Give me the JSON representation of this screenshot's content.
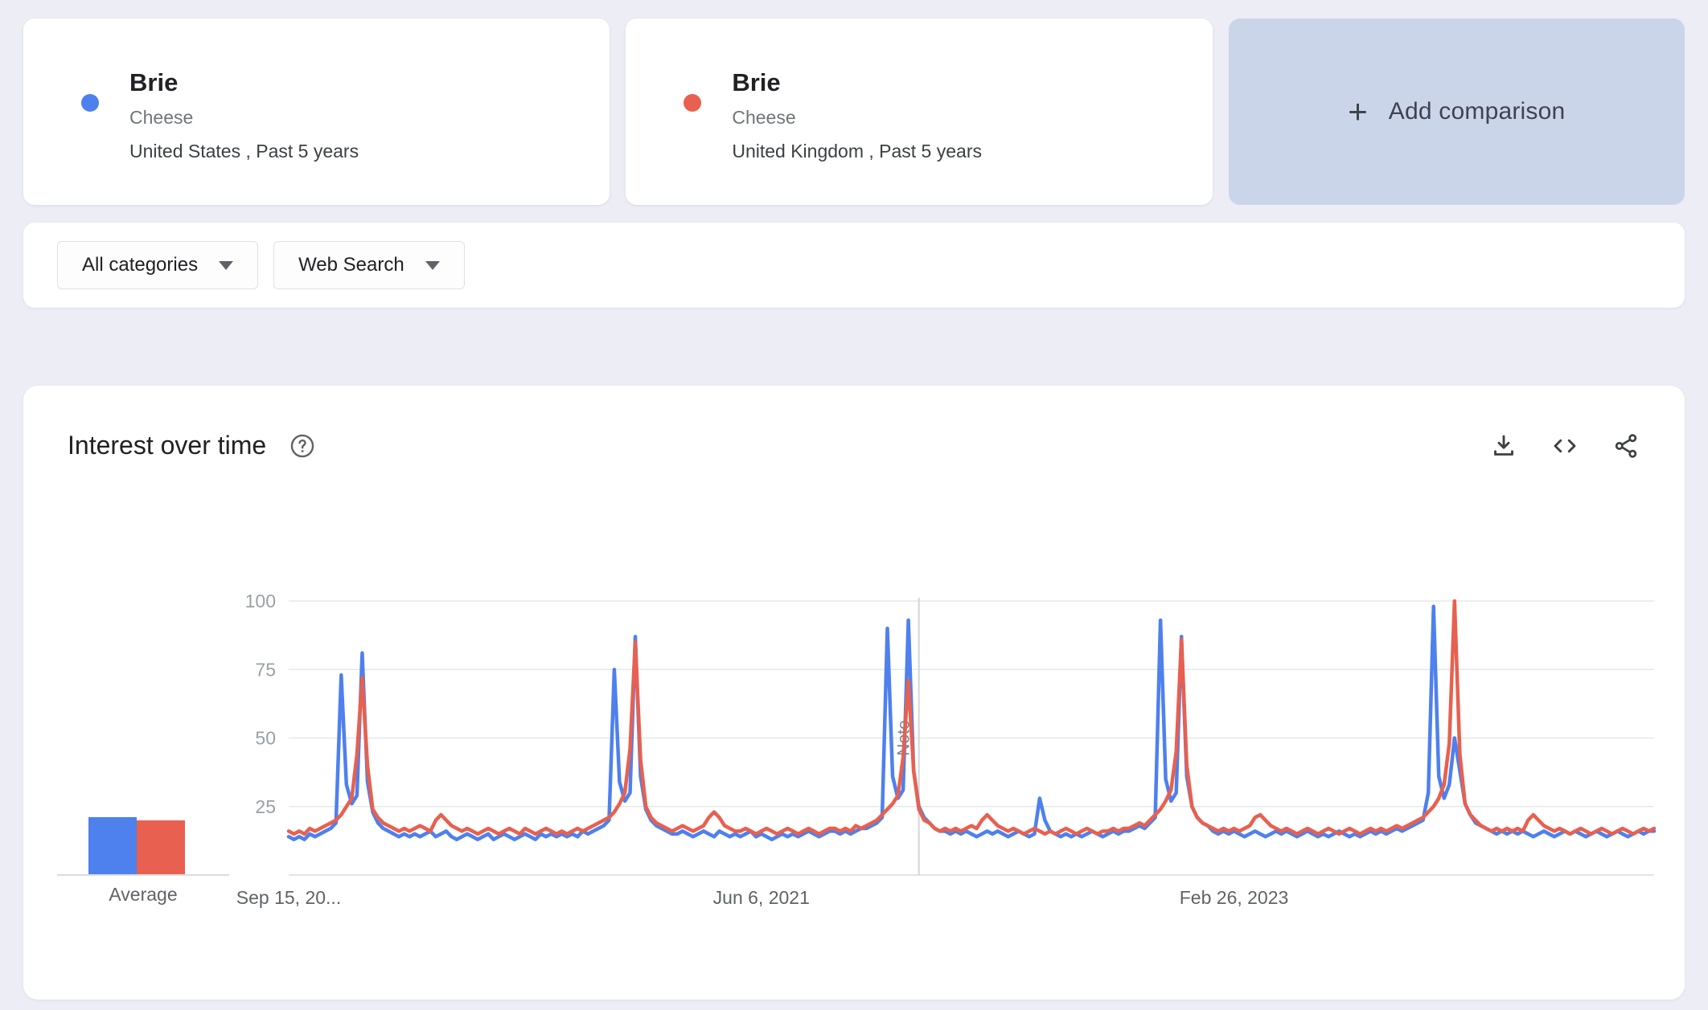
{
  "icons": {
    "plus": "+"
  },
  "comparison": {
    "items": [
      {
        "term": "Brie",
        "subtitle": "Cheese",
        "scope": "United States , Past 5 years",
        "color": "#4e80ee"
      },
      {
        "term": "Brie",
        "subtitle": "Cheese",
        "scope": "United Kingdom , Past 5 years",
        "color": "#e8604f"
      }
    ],
    "add_label": "Add comparison"
  },
  "filters": {
    "category_label": "All categories",
    "search_type_label": "Web Search"
  },
  "chart_card": {
    "title": "Interest over time"
  },
  "chart_data": {
    "type": "line",
    "title": "Interest over time",
    "x_axis": {
      "start": "Sep 15, 2019",
      "interval": "weekly",
      "tick_labels": [
        "Sep 15, 20...",
        "Jun 6, 2021",
        "Feb 26, 2023"
      ],
      "tick_positions_week": [
        0,
        90,
        180
      ]
    },
    "y_axis": {
      "ticks": [
        25,
        50,
        75,
        100
      ],
      "range": [
        0,
        100
      ],
      "grid": true
    },
    "note_marker": {
      "label": "Note",
      "week": 120
    },
    "series": [
      {
        "name": "Brie (United States)",
        "color": "#4e80ee",
        "values": [
          14,
          13,
          14,
          13,
          15,
          14,
          15,
          16,
          17,
          19,
          73,
          33,
          26,
          29,
          81,
          34,
          23,
          19,
          17,
          16,
          15,
          14,
          15,
          14,
          15,
          14,
          15,
          16,
          14,
          15,
          16,
          14,
          13,
          14,
          15,
          14,
          13,
          14,
          15,
          13,
          14,
          15,
          14,
          13,
          14,
          15,
          14,
          13,
          15,
          14,
          15,
          14,
          15,
          14,
          15,
          14,
          16,
          15,
          16,
          17,
          18,
          20,
          75,
          34,
          27,
          30,
          87,
          36,
          24,
          20,
          18,
          17,
          16,
          15,
          15,
          16,
          15,
          14,
          15,
          16,
          15,
          14,
          16,
          15,
          14,
          15,
          14,
          15,
          16,
          14,
          15,
          14,
          13,
          14,
          15,
          14,
          15,
          14,
          15,
          16,
          15,
          14,
          15,
          16,
          16,
          15,
          16,
          15,
          16,
          17,
          17,
          18,
          19,
          21,
          90,
          36,
          28,
          31,
          93,
          38,
          25,
          21,
          19,
          17,
          16,
          16,
          15,
          16,
          15,
          16,
          15,
          14,
          15,
          16,
          15,
          16,
          15,
          14,
          15,
          16,
          15,
          14,
          15,
          28,
          20,
          16,
          15,
          14,
          15,
          14,
          15,
          14,
          15,
          16,
          15,
          14,
          15,
          16,
          15,
          16,
          16,
          17,
          18,
          17,
          19,
          21,
          93,
          35,
          27,
          30,
          87,
          36,
          25,
          21,
          19,
          18,
          16,
          15,
          16,
          15,
          16,
          15,
          14,
          15,
          16,
          15,
          14,
          15,
          16,
          15,
          16,
          15,
          14,
          15,
          16,
          15,
          14,
          15,
          14,
          15,
          16,
          15,
          14,
          15,
          14,
          15,
          16,
          15,
          16,
          15,
          16,
          17,
          16,
          17,
          18,
          19,
          20,
          30,
          98,
          36,
          28,
          33,
          50,
          38,
          26,
          22,
          19,
          18,
          17,
          16,
          15,
          16,
          15,
          16,
          15,
          16,
          15,
          14,
          15,
          16,
          15,
          14,
          15,
          16,
          15,
          16,
          15,
          14,
          15,
          16,
          15,
          14,
          15,
          16,
          15,
          14,
          15,
          16,
          15,
          16,
          16
        ]
      },
      {
        "name": "Brie (United Kingdom)",
        "color": "#e8604f",
        "values": [
          16,
          15,
          16,
          15,
          17,
          16,
          17,
          18,
          19,
          20,
          22,
          25,
          28,
          44,
          72,
          40,
          24,
          21,
          19,
          18,
          17,
          16,
          17,
          16,
          17,
          18,
          17,
          16,
          20,
          22,
          20,
          18,
          17,
          16,
          17,
          16,
          15,
          16,
          17,
          16,
          15,
          16,
          17,
          16,
          15,
          17,
          16,
          15,
          16,
          17,
          16,
          15,
          16,
          15,
          16,
          17,
          16,
          17,
          18,
          19,
          20,
          21,
          23,
          26,
          30,
          46,
          85,
          42,
          25,
          21,
          19,
          18,
          17,
          16,
          17,
          18,
          17,
          16,
          17,
          18,
          21,
          23,
          21,
          18,
          17,
          16,
          16,
          17,
          16,
          15,
          16,
          17,
          16,
          15,
          16,
          17,
          16,
          15,
          16,
          17,
          16,
          15,
          16,
          17,
          17,
          16,
          17,
          16,
          18,
          17,
          18,
          19,
          20,
          22,
          24,
          26,
          29,
          43,
          71,
          38,
          24,
          20,
          19,
          17,
          16,
          17,
          16,
          17,
          16,
          17,
          18,
          17,
          20,
          22,
          20,
          18,
          17,
          16,
          17,
          16,
          15,
          16,
          17,
          16,
          15,
          16,
          15,
          16,
          17,
          16,
          15,
          16,
          17,
          16,
          15,
          16,
          16,
          17,
          16,
          17,
          17,
          18,
          19,
          18,
          20,
          22,
          24,
          27,
          31,
          45,
          86,
          40,
          25,
          21,
          19,
          18,
          17,
          16,
          17,
          16,
          17,
          16,
          17,
          18,
          21,
          22,
          20,
          18,
          17,
          16,
          17,
          16,
          15,
          16,
          17,
          16,
          15,
          16,
          17,
          16,
          15,
          16,
          17,
          16,
          15,
          16,
          17,
          16,
          17,
          16,
          17,
          18,
          17,
          18,
          19,
          20,
          21,
          23,
          25,
          28,
          33,
          48,
          100,
          44,
          26,
          22,
          20,
          18,
          17,
          16,
          17,
          16,
          17,
          16,
          17,
          16,
          20,
          22,
          20,
          18,
          17,
          16,
          17,
          16,
          15,
          16,
          17,
          16,
          15,
          16,
          17,
          16,
          15,
          16,
          17,
          16,
          15,
          16,
          17,
          16,
          17
        ]
      }
    ],
    "averages": {
      "label": "Average",
      "values": [
        {
          "name": "Brie (United States)",
          "value": 21,
          "color": "#4e80ee"
        },
        {
          "name": "Brie (United Kingdom)",
          "value": 20,
          "color": "#e8604f"
        }
      ]
    }
  }
}
